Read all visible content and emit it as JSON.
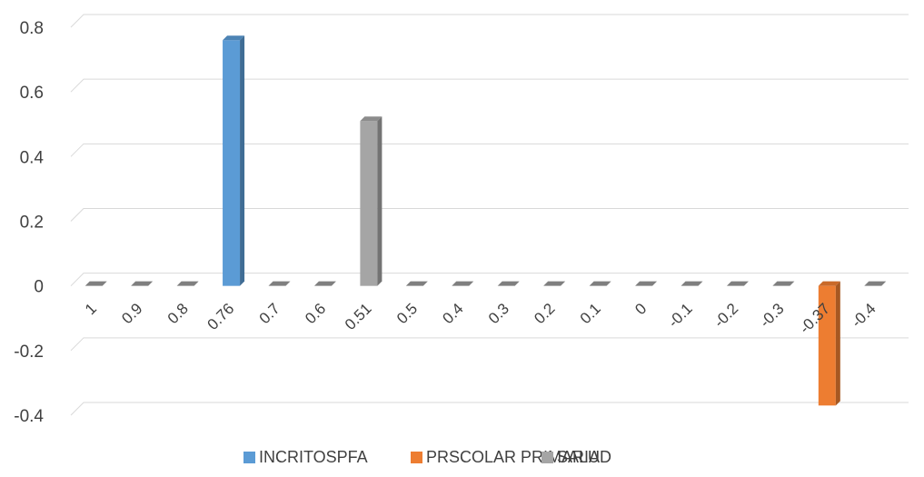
{
  "chart_data": {
    "type": "bar",
    "title": "",
    "xlabel": "",
    "ylabel": "",
    "categories": [
      "1",
      "0.9",
      "0.8",
      "0.76",
      "0.7",
      "0.6",
      "0.51",
      "0.5",
      "0.4",
      "0.3",
      "0.2",
      "0.1",
      "0",
      "-0.1",
      "-0.2",
      "-0.3",
      "-0.37",
      "-0.4"
    ],
    "y_ticks": [
      "0.8",
      "0.6",
      "0.4",
      "0.2",
      "0",
      "-0.2",
      "-0.4"
    ],
    "ylim": [
      -0.4,
      0.8
    ],
    "grid": true,
    "legend_position": "bottom",
    "style": "3d-column",
    "series": [
      {
        "name": "INCRITOSPFA",
        "color": "#5b9bd5",
        "values": [
          0,
          0,
          0,
          0.76,
          0,
          0,
          0,
          0,
          0,
          0,
          0,
          0,
          0,
          0,
          0,
          0,
          0,
          0
        ]
      },
      {
        "name": "PRSCOLAR PRIMARIA",
        "color": "#ed7d31",
        "values": [
          0,
          0,
          0,
          0,
          0,
          0,
          0,
          0,
          0,
          0,
          0,
          0,
          0,
          0,
          0,
          0,
          -0.37,
          0
        ]
      },
      {
        "name": "SALUD",
        "color": "#a5a5a5",
        "values": [
          0,
          0,
          0,
          0,
          0,
          0,
          0.51,
          0,
          0,
          0,
          0,
          0,
          0,
          0,
          0,
          0,
          0,
          0
        ]
      }
    ]
  }
}
